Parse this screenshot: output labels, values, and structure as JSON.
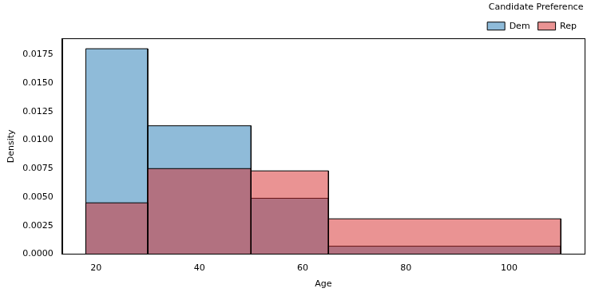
{
  "chart_data": {
    "type": "histogram",
    "x_label": "Age",
    "y_label": "Density",
    "legend_title": "Candidate Preference",
    "legend": "upper right",
    "bins": [
      18,
      30,
      50,
      65,
      110
    ],
    "series": [
      {
        "name": "Dem",
        "color": "#1f77b4",
        "values": [
          0.018,
          0.01125,
          0.0049,
          0.0007
        ]
      },
      {
        "name": "Rep",
        "color": "#d62728",
        "values": [
          0.0045,
          0.0075,
          0.0073,
          0.0031
        ]
      }
    ],
    "xlim": [
      13.4,
      114.6
    ],
    "xticks": [
      20,
      40,
      60,
      80,
      100
    ],
    "ylim": [
      0,
      0.0189
    ],
    "yticks": [
      {
        "value": 0,
        "label": "0.0000"
      },
      {
        "value": 0.0025,
        "label": "0.0025"
      },
      {
        "value": 0.005,
        "label": "0.0050"
      },
      {
        "value": 0.0075,
        "label": "0.0075"
      },
      {
        "value": 0.01,
        "label": "0.0100"
      },
      {
        "value": 0.0125,
        "label": "0.0125"
      },
      {
        "value": 0.015,
        "label": "0.0150"
      },
      {
        "value": 0.0175,
        "label": "0.0175"
      }
    ],
    "grid": false
  }
}
